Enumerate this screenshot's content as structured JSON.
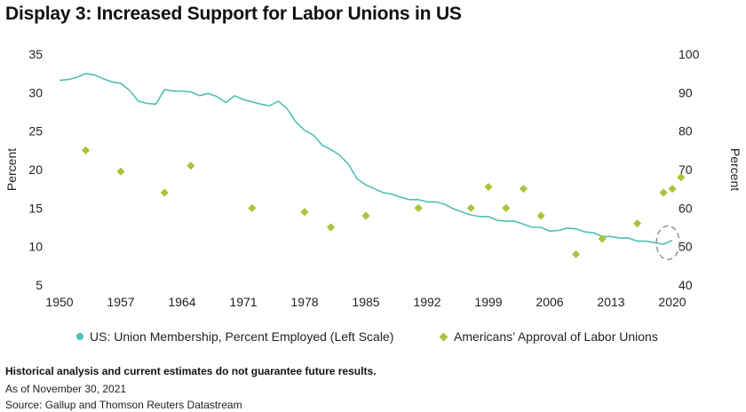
{
  "title": "Display 3: Increased Support for Labor Unions in US",
  "chart_data": {
    "type": "line+scatter",
    "x_ticks": [
      "1950",
      "1957",
      "1964",
      "1971",
      "1978",
      "1985",
      "1992",
      "1999",
      "2006",
      "2013",
      "2020"
    ],
    "y_left": {
      "label": "Percent",
      "range": [
        5,
        35
      ],
      "ticks": [
        "5",
        "10",
        "15",
        "20",
        "25",
        "30",
        "35"
      ]
    },
    "y_right": {
      "label": "Percent",
      "range": [
        40,
        100
      ],
      "ticks": [
        "40",
        "50",
        "60",
        "70",
        "80",
        "90",
        "100"
      ]
    },
    "grid": false,
    "legend_position": "bottom",
    "series": [
      {
        "name": "US: Union Membership, Percent Employed (Left Scale)",
        "type": "line",
        "axis": "left",
        "color": "#4fc0b0",
        "points": [
          [
            1950,
            31.6
          ],
          [
            1951,
            31.7
          ],
          [
            1952,
            32.0
          ],
          [
            1953,
            32.5
          ],
          [
            1954,
            32.3
          ],
          [
            1955,
            31.8
          ],
          [
            1956,
            31.4
          ],
          [
            1957,
            31.2
          ],
          [
            1958,
            30.3
          ],
          [
            1959,
            28.9
          ],
          [
            1960,
            28.6
          ],
          [
            1961,
            28.5
          ],
          [
            1962,
            30.4
          ],
          [
            1963,
            30.2
          ],
          [
            1964,
            30.2
          ],
          [
            1965,
            30.1
          ],
          [
            1966,
            29.6
          ],
          [
            1967,
            29.9
          ],
          [
            1968,
            29.5
          ],
          [
            1969,
            28.7
          ],
          [
            1970,
            29.6
          ],
          [
            1971,
            29.1
          ],
          [
            1972,
            28.8
          ],
          [
            1973,
            28.5
          ],
          [
            1974,
            28.3
          ],
          [
            1975,
            28.9
          ],
          [
            1976,
            27.9
          ],
          [
            1977,
            26.2
          ],
          [
            1978,
            25.1
          ],
          [
            1979,
            24.5
          ],
          [
            1980,
            23.2
          ],
          [
            1981,
            22.6
          ],
          [
            1982,
            21.9
          ],
          [
            1983,
            20.7
          ],
          [
            1984,
            18.8
          ],
          [
            1985,
            18.0
          ],
          [
            1986,
            17.5
          ],
          [
            1987,
            17.0
          ],
          [
            1988,
            16.8
          ],
          [
            1989,
            16.4
          ],
          [
            1990,
            16.1
          ],
          [
            1991,
            16.1
          ],
          [
            1992,
            15.8
          ],
          [
            1993,
            15.8
          ],
          [
            1994,
            15.5
          ],
          [
            1995,
            14.9
          ],
          [
            1996,
            14.5
          ],
          [
            1997,
            14.1
          ],
          [
            1998,
            13.9
          ],
          [
            1999,
            13.9
          ],
          [
            2000,
            13.4
          ],
          [
            2001,
            13.3
          ],
          [
            2002,
            13.3
          ],
          [
            2003,
            12.9
          ],
          [
            2004,
            12.5
          ],
          [
            2005,
            12.5
          ],
          [
            2006,
            12.0
          ],
          [
            2007,
            12.1
          ],
          [
            2008,
            12.4
          ],
          [
            2009,
            12.3
          ],
          [
            2010,
            11.9
          ],
          [
            2011,
            11.8
          ],
          [
            2012,
            11.3
          ],
          [
            2013,
            11.3
          ],
          [
            2014,
            11.1
          ],
          [
            2015,
            11.1
          ],
          [
            2016,
            10.7
          ],
          [
            2017,
            10.7
          ],
          [
            2018,
            10.5
          ],
          [
            2019,
            10.3
          ],
          [
            2020,
            10.8
          ]
        ]
      },
      {
        "name": "Americans’ Approval of Labor Unions",
        "type": "scatter",
        "axis": "right",
        "color": "#a8c43a",
        "points": [
          [
            1953,
            75
          ],
          [
            1957,
            69.5
          ],
          [
            1962,
            64
          ],
          [
            1965,
            71
          ],
          [
            1972,
            60
          ],
          [
            1978,
            59
          ],
          [
            1981,
            55
          ],
          [
            1985,
            58
          ],
          [
            1991,
            60
          ],
          [
            1997,
            60
          ],
          [
            1999,
            65.5
          ],
          [
            2001,
            60
          ],
          [
            2003,
            65
          ],
          [
            2005,
            58
          ],
          [
            2009,
            48
          ],
          [
            2012,
            52
          ],
          [
            2016,
            56
          ],
          [
            2019,
            64
          ],
          [
            2020,
            65
          ],
          [
            2021,
            68
          ]
        ]
      }
    ],
    "annotation": {
      "type": "dashed-ellipse",
      "x": 2019.5,
      "y_left": 10.5
    }
  },
  "notes": {
    "disclaimer": "Historical analysis and current estimates do not guarantee future results.",
    "date": "As of November 30, 2021",
    "source": "Source: Gallup and Thomson Reuters Datastream"
  }
}
